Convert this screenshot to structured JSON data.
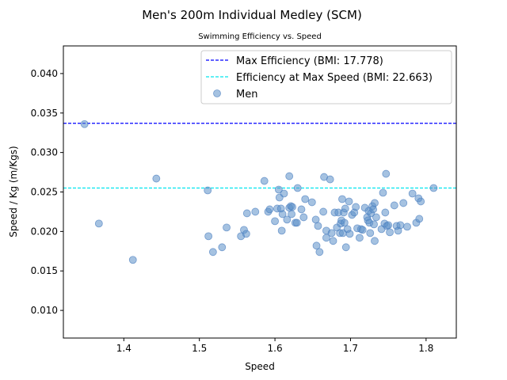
{
  "chart_data": {
    "type": "scatter",
    "title": "Men's 200m Individual Medley (SCM)",
    "subtitle": "Swimming Efficiency vs. Speed",
    "xlabel": "Speed",
    "ylabel": "Speed / Kg (m/Kgs)",
    "xlim": [
      1.32,
      1.84
    ],
    "ylim": [
      0.0065,
      0.0435
    ],
    "xticks": [
      1.4,
      1.5,
      1.6,
      1.7,
      1.8
    ],
    "xtick_labels": [
      "1.4",
      "1.5",
      "1.6",
      "1.7",
      "1.8"
    ],
    "yticks": [
      0.01,
      0.015,
      0.02,
      0.025,
      0.03,
      0.035,
      0.04
    ],
    "ytick_labels": [
      "0.010",
      "0.015",
      "0.020",
      "0.025",
      "0.030",
      "0.035",
      "0.040"
    ],
    "grid": false,
    "legend_position": "top-right",
    "hlines": [
      {
        "label": "Max Efficiency (BMI: 17.778)",
        "y": 0.0337,
        "color": "#0000ff"
      },
      {
        "label": "Efficiency at Max Speed (BMI: 22.663)",
        "y": 0.0255,
        "color": "#00e5ee"
      }
    ],
    "series": [
      {
        "name": "Men",
        "color": "#5b8fc9",
        "points": [
          [
            1.348,
            0.0336
          ],
          [
            1.367,
            0.021
          ],
          [
            1.412,
            0.0164
          ],
          [
            1.443,
            0.0267
          ],
          [
            1.511,
            0.0252
          ],
          [
            1.512,
            0.0194
          ],
          [
            1.518,
            0.0174
          ],
          [
            1.53,
            0.018
          ],
          [
            1.536,
            0.0205
          ],
          [
            1.555,
            0.0194
          ],
          [
            1.559,
            0.0202
          ],
          [
            1.562,
            0.0197
          ],
          [
            1.563,
            0.0223
          ],
          [
            1.574,
            0.0225
          ],
          [
            1.586,
            0.0264
          ],
          [
            1.591,
            0.0225
          ],
          [
            1.593,
            0.0228
          ],
          [
            1.6,
            0.0213
          ],
          [
            1.603,
            0.0229
          ],
          [
            1.605,
            0.0253
          ],
          [
            1.606,
            0.0243
          ],
          [
            1.608,
            0.0229
          ],
          [
            1.609,
            0.0201
          ],
          [
            1.61,
            0.0222
          ],
          [
            1.612,
            0.0248
          ],
          [
            1.616,
            0.0215
          ],
          [
            1.619,
            0.027
          ],
          [
            1.619,
            0.023
          ],
          [
            1.621,
            0.0232
          ],
          [
            1.622,
            0.0222
          ],
          [
            1.623,
            0.0231
          ],
          [
            1.627,
            0.0211
          ],
          [
            1.629,
            0.0211
          ],
          [
            1.63,
            0.0255
          ],
          [
            1.635,
            0.0228
          ],
          [
            1.638,
            0.0218
          ],
          [
            1.64,
            0.0241
          ],
          [
            1.649,
            0.0237
          ],
          [
            1.654,
            0.0215
          ],
          [
            1.655,
            0.0182
          ],
          [
            1.657,
            0.0207
          ],
          [
            1.659,
            0.0174
          ],
          [
            1.664,
            0.0225
          ],
          [
            1.665,
            0.0269
          ],
          [
            1.668,
            0.0201
          ],
          [
            1.668,
            0.0192
          ],
          [
            1.673,
            0.0266
          ],
          [
            1.675,
            0.0198
          ],
          [
            1.677,
            0.0188
          ],
          [
            1.679,
            0.0224
          ],
          [
            1.682,
            0.0205
          ],
          [
            1.684,
            0.0224
          ],
          [
            1.686,
            0.0198
          ],
          [
            1.687,
            0.021
          ],
          [
            1.688,
            0.0214
          ],
          [
            1.689,
            0.0241
          ],
          [
            1.69,
            0.0198
          ],
          [
            1.691,
            0.0224
          ],
          [
            1.692,
            0.0211
          ],
          [
            1.693,
            0.0229
          ],
          [
            1.694,
            0.018
          ],
          [
            1.696,
            0.0203
          ],
          [
            1.698,
            0.0238
          ],
          [
            1.699,
            0.0197
          ],
          [
            1.702,
            0.0221
          ],
          [
            1.705,
            0.0224
          ],
          [
            1.707,
            0.0231
          ],
          [
            1.709,
            0.0204
          ],
          [
            1.712,
            0.0192
          ],
          [
            1.714,
            0.0203
          ],
          [
            1.716,
            0.0202
          ],
          [
            1.719,
            0.023
          ],
          [
            1.722,
            0.0218
          ],
          [
            1.723,
            0.0214
          ],
          [
            1.724,
            0.0226
          ],
          [
            1.725,
            0.0211
          ],
          [
            1.726,
            0.0198
          ],
          [
            1.727,
            0.0223
          ],
          [
            1.729,
            0.0232
          ],
          [
            1.73,
            0.0228
          ],
          [
            1.731,
            0.0209
          ],
          [
            1.732,
            0.0236
          ],
          [
            1.732,
            0.0188
          ],
          [
            1.734,
            0.0218
          ],
          [
            1.741,
            0.0203
          ],
          [
            1.743,
            0.0249
          ],
          [
            1.745,
            0.021
          ],
          [
            1.746,
            0.0224
          ],
          [
            1.747,
            0.0273
          ],
          [
            1.748,
            0.0207
          ],
          [
            1.75,
            0.0208
          ],
          [
            1.752,
            0.0199
          ],
          [
            1.758,
            0.0233
          ],
          [
            1.761,
            0.0207
          ],
          [
            1.763,
            0.0201
          ],
          [
            1.766,
            0.0208
          ],
          [
            1.77,
            0.0236
          ],
          [
            1.775,
            0.0206
          ],
          [
            1.782,
            0.0248
          ],
          [
            1.787,
            0.0211
          ],
          [
            1.79,
            0.0242
          ],
          [
            1.791,
            0.0216
          ],
          [
            1.793,
            0.0238
          ],
          [
            1.81,
            0.0255
          ]
        ]
      }
    ]
  }
}
